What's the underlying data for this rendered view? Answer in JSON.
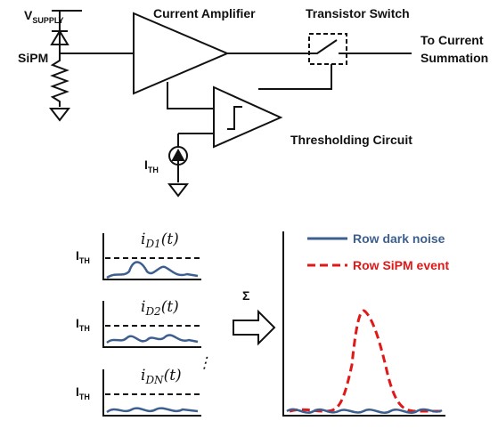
{
  "circuit": {
    "supply": {
      "main": "V",
      "sub": "SUPPLY"
    },
    "sipm": "SiPM",
    "amplifier": "Current Amplifier",
    "switch": "Transistor Switch",
    "output": [
      "To Current",
      "Summation"
    ],
    "threshold_circuit": "Thresholding Circuit",
    "ith": {
      "main": "I",
      "sub": "TH"
    }
  },
  "plots": {
    "small": [
      {
        "ith": {
          "main": "I",
          "sub": "TH"
        },
        "label": {
          "main": "i",
          "sub": "D1",
          "tail": "(t)"
        }
      },
      {
        "ith": {
          "main": "I",
          "sub": "TH"
        },
        "label": {
          "main": "i",
          "sub": "D2",
          "tail": "(t)"
        }
      },
      {
        "ith": {
          "main": "I",
          "sub": "TH"
        },
        "label": {
          "main": "i",
          "sub": "DN",
          "tail": "(t)"
        }
      }
    ],
    "ellipsis": "⋮",
    "sum": "Σ",
    "legend": [
      "Row dark noise",
      "Row SiPM event"
    ]
  }
}
